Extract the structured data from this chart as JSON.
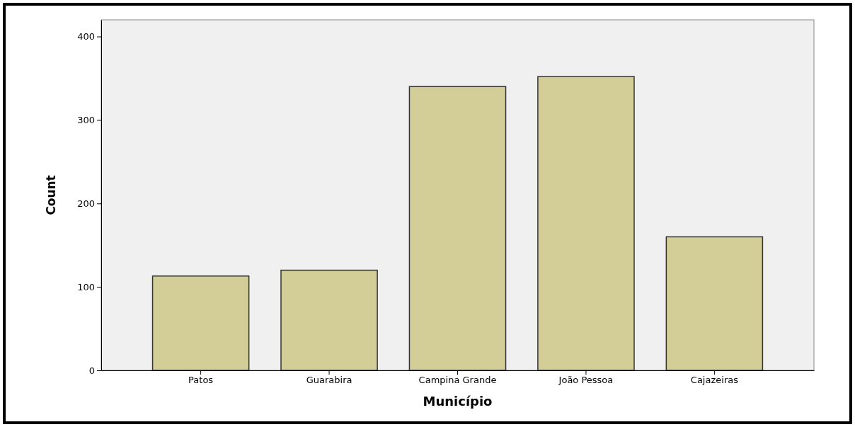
{
  "chart_data": {
    "type": "bar",
    "xlabel": "Município",
    "ylabel": "Count",
    "categories": [
      "Patos",
      "Guarabira",
      "Campina Grande",
      "João Pessoa",
      "Cajazeiras"
    ],
    "values": [
      113,
      120,
      340,
      352,
      160
    ],
    "color": "#d3cd98",
    "ylim": [
      0,
      420
    ],
    "yticks": [
      0,
      100,
      200,
      300,
      400
    ],
    "grid": false
  }
}
